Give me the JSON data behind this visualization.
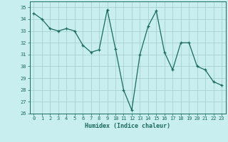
{
  "x": [
    0,
    1,
    2,
    3,
    4,
    5,
    6,
    7,
    8,
    9,
    10,
    11,
    12,
    13,
    14,
    15,
    16,
    17,
    18,
    19,
    20,
    21,
    22,
    23
  ],
  "y": [
    34.5,
    34.0,
    33.2,
    33.0,
    33.2,
    33.0,
    31.8,
    31.2,
    31.4,
    34.8,
    31.5,
    28.0,
    26.3,
    31.0,
    33.4,
    34.7,
    31.2,
    29.7,
    32.0,
    32.0,
    30.0,
    29.7,
    28.7,
    28.4
  ],
  "xlabel": "Humidex (Indice chaleur)",
  "xlim": [
    -0.5,
    23.5
  ],
  "ylim": [
    26,
    35.5
  ],
  "yticks": [
    26,
    27,
    28,
    29,
    30,
    31,
    32,
    33,
    34,
    35
  ],
  "xticks": [
    0,
    1,
    2,
    3,
    4,
    5,
    6,
    7,
    8,
    9,
    10,
    11,
    12,
    13,
    14,
    15,
    16,
    17,
    18,
    19,
    20,
    21,
    22,
    23
  ],
  "line_color": "#1a6b5a",
  "marker": "+",
  "bg_color": "#c8eef0",
  "grid_color": "#a0cccc",
  "tick_color": "#1a6b5a",
  "label_color": "#1a6b5a",
  "spine_color": "#1a6b5a"
}
